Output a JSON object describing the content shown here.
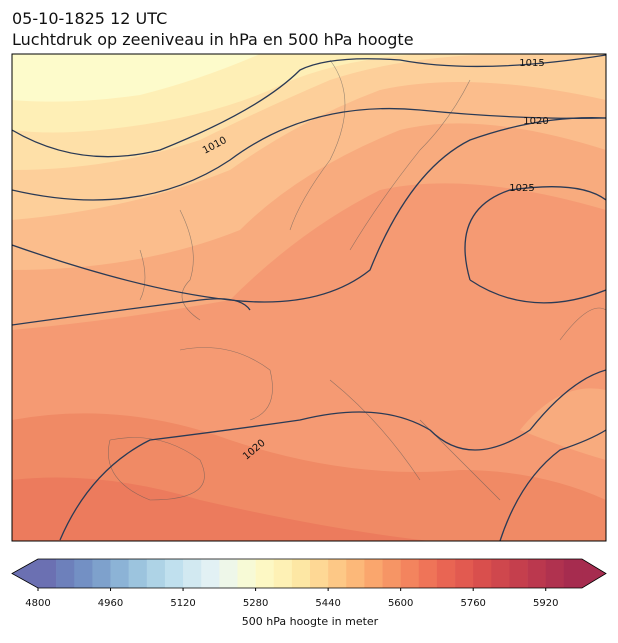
{
  "header": {
    "title": "05-10-1825 12 UTC",
    "subtitle": "Luchtdruk op zeeniveau in hPa en 500 hPa hoogte"
  },
  "isobar_labels": [
    1015,
    1020,
    1010,
    1025,
    1020
  ],
  "colorbar": {
    "label": "500 hPa hoogte in meter",
    "lim": [
      4800,
      6000
    ],
    "ticks": [
      4800,
      4960,
      5120,
      5280,
      5440,
      5600,
      5760,
      5920
    ],
    "colors": [
      "#6b70b2",
      "#6d80bb",
      "#7390c4",
      "#7ea1cc",
      "#8cb3d6",
      "#9cc4de",
      "#aed3e6",
      "#c0e0ee",
      "#d2e9f1",
      "#e2f1f4",
      "#eef7e9",
      "#f7fad6",
      "#fdf8c4",
      "#fef1b5",
      "#fde7a4",
      "#fed895",
      "#fdc886",
      "#fcb879",
      "#faa66d",
      "#f69565",
      "#f3845e",
      "#ef7458",
      "#e96553",
      "#e25a50",
      "#d94f4d",
      "#cf474d",
      "#c53f4d",
      "#bb384e",
      "#b0324f",
      "#a62c4f"
    ]
  }
}
